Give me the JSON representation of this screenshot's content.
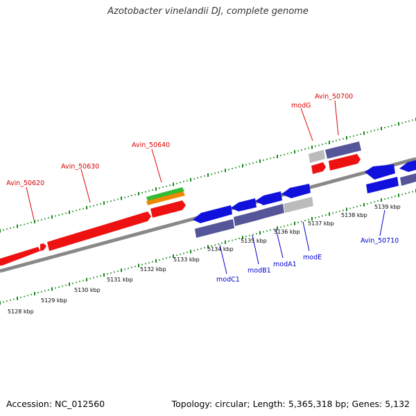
{
  "title": "Azotobacter vinelandii DJ, complete genome",
  "footer": {
    "accession": "Accession: NC_012560",
    "stats": "Topology: circular; Length: 5,365,318 bp; Genes: 5,132"
  },
  "colors": {
    "forward_gene": "#ee1111",
    "reverse_gene": "#1111dd",
    "reverse_gene_alt": "#555599",
    "pseudo": "#bbbbbb",
    "rna_green": "#33bb33",
    "rna_orange": "#ee8800",
    "tick": "#118811",
    "backbone": "#888888",
    "label_forward": "#dd0000",
    "label_reverse": "#0000cc"
  },
  "scale_labels": [
    "5128 kbp",
    "5129 kbp",
    "5130 kbp",
    "5131 kbp",
    "5132 kbp",
    "5133 kbp",
    "5134 kbp",
    "5135 kbp",
    "5136 kbp",
    "5137 kbp",
    "5138 kbp",
    "5139 kbp"
  ],
  "gene_labels": {
    "forward": [
      "Avin_50620",
      "Avin_50630",
      "Avin_50640",
      "modG",
      "Avin_50700"
    ],
    "reverse": [
      "modC1",
      "modB1",
      "modA1",
      "modE",
      "Avin_50710"
    ]
  }
}
